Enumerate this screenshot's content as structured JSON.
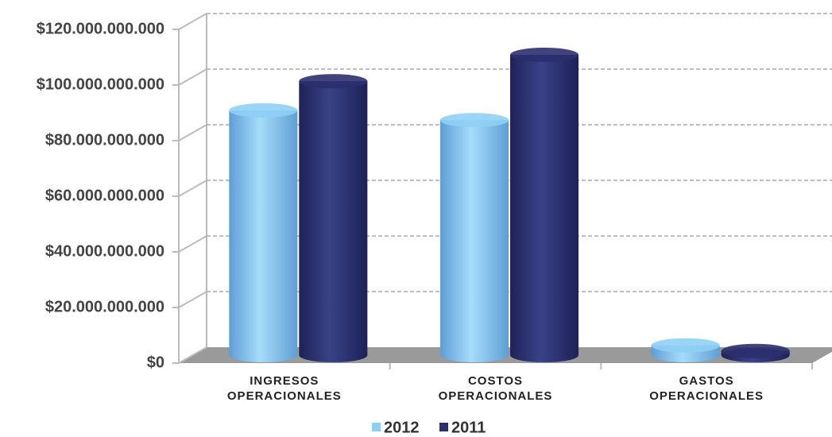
{
  "chart_data": {
    "type": "bar3d",
    "categories": [
      "INGRESOS OPERACIONALES",
      "COSTOS OPERACIONALES",
      "GASTOS OPERACIONALES"
    ],
    "series": [
      {
        "name": "2012",
        "color": "#8fcff5",
        "values": [
          88000000000,
          84500000000,
          3500000000
        ]
      },
      {
        "name": "2011",
        "color": "#2b2f6e",
        "values": [
          98500000000,
          108000000000,
          1500000000
        ]
      }
    ],
    "ylim": [
      0,
      120000000000
    ],
    "yticks": [
      {
        "value": 0,
        "label": "$0"
      },
      {
        "value": 20000000000,
        "label": "$20.000.000.000"
      },
      {
        "value": 40000000000,
        "label": "$40.000.000.000"
      },
      {
        "value": 60000000000,
        "label": "$60.000.000.000"
      },
      {
        "value": 80000000000,
        "label": "$80.000.000.000"
      },
      {
        "value": 100000000000,
        "label": "$100.000.000.000"
      },
      {
        "value": 120000000000,
        "label": "$120.000.000.000"
      }
    ],
    "grid": true,
    "legend": "bottom"
  }
}
